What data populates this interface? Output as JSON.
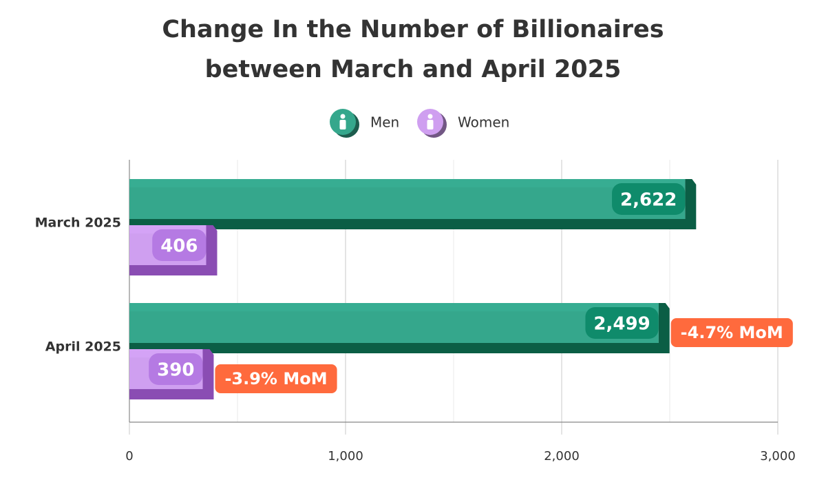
{
  "chart_data": {
    "type": "bar",
    "orientation": "horizontal",
    "title": "Change In the Number of Billionaires\nbetween March and April 2025",
    "categories": [
      "March 2025",
      "April 2025"
    ],
    "series": [
      {
        "name": "Men",
        "color": "#35a78c",
        "values": [
          2622,
          2499
        ],
        "value_labels": [
          "2,622",
          "2,499"
        ],
        "annotations": [
          null,
          "-4.7% MoM"
        ]
      },
      {
        "name": "Women",
        "color": "#cf9ff0",
        "values": [
          406,
          390
        ],
        "value_labels": [
          "406",
          "390"
        ],
        "annotations": [
          null,
          "-3.9% MoM"
        ]
      }
    ],
    "xlim": [
      0,
      3000
    ],
    "xticks": [
      0,
      {
        "value": 1000,
        "label": "1,000"
      },
      {
        "value": 2000,
        "label": "2,000"
      },
      {
        "value": 3000,
        "label": "3,000"
      }
    ],
    "xminor": [
      500,
      1500,
      2500
    ],
    "grid": true,
    "legend": "top"
  }
}
